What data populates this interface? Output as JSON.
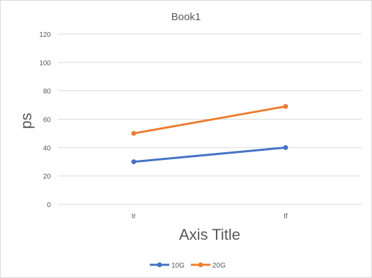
{
  "chart_data": {
    "type": "line",
    "title": "Book1",
    "xlabel": "Axis Title",
    "ylabel": "ps",
    "categories": [
      "tr",
      "tf"
    ],
    "ylim": [
      0,
      120
    ],
    "yticks": [
      0,
      20,
      40,
      60,
      80,
      100,
      120
    ],
    "grid": true,
    "legend_position": "bottom",
    "series": [
      {
        "name": "10G",
        "values": [
          30,
          40
        ],
        "color": "#4472c4"
      },
      {
        "name": "20G",
        "values": [
          50,
          69
        ],
        "color": "#ed7d31"
      }
    ]
  }
}
